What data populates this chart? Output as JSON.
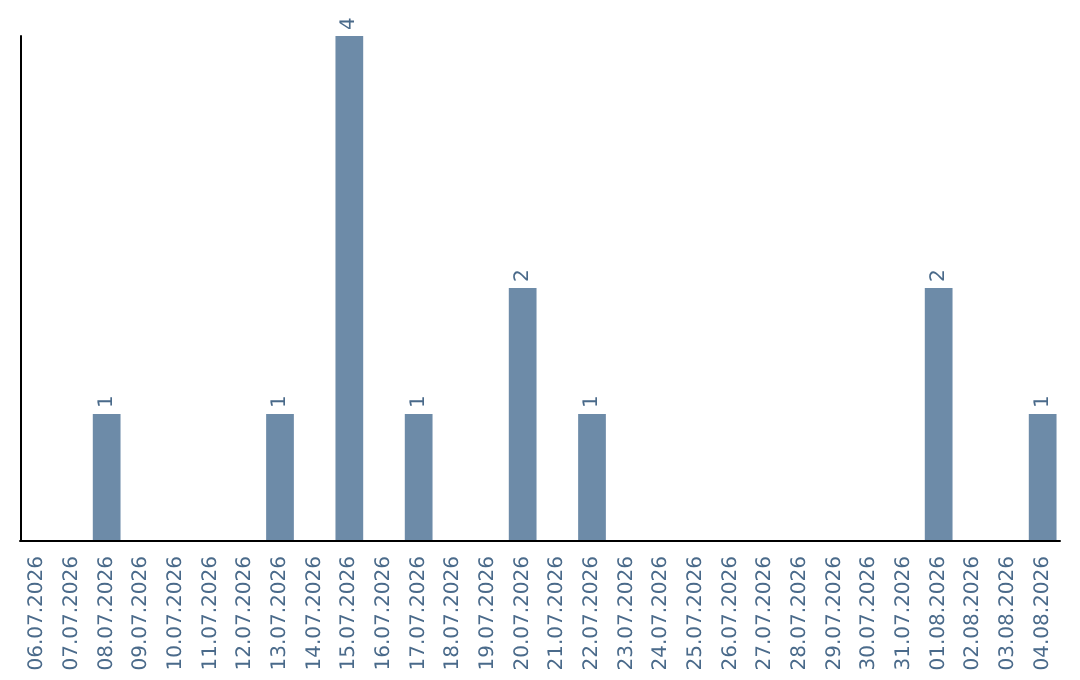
{
  "chart_data": {
    "type": "bar",
    "categories": [
      "06.07.2026",
      "07.07.2026",
      "08.07.2026",
      "09.07.2026",
      "10.07.2026",
      "11.07.2026",
      "12.07.2026",
      "13.07.2026",
      "14.07.2026",
      "15.07.2026",
      "16.07.2026",
      "17.07.2026",
      "18.07.2026",
      "19.07.2026",
      "20.07.2026",
      "21.07.2026",
      "22.07.2026",
      "23.07.2026",
      "24.07.2026",
      "25.07.2026",
      "26.07.2026",
      "27.07.2026",
      "28.07.2026",
      "29.07.2026",
      "30.07.2026",
      "31.07.2026",
      "01.08.2026",
      "02.08.2026",
      "03.08.2026",
      "04.08.2026"
    ],
    "values": [
      0,
      0,
      1,
      0,
      0,
      0,
      0,
      1,
      0,
      4,
      0,
      1,
      0,
      0,
      2,
      0,
      1,
      0,
      0,
      0,
      0,
      0,
      0,
      0,
      0,
      0,
      2,
      0,
      0,
      1
    ],
    "value_labels": [
      null,
      null,
      "1",
      null,
      null,
      null,
      null,
      "1",
      null,
      "4",
      null,
      "1",
      null,
      null,
      "2",
      null,
      "1",
      null,
      null,
      null,
      null,
      null,
      null,
      null,
      null,
      null,
      "2",
      null,
      null,
      "1"
    ],
    "color": "#6d8ba8",
    "tick_labels": "x",
    "grid": false
  }
}
